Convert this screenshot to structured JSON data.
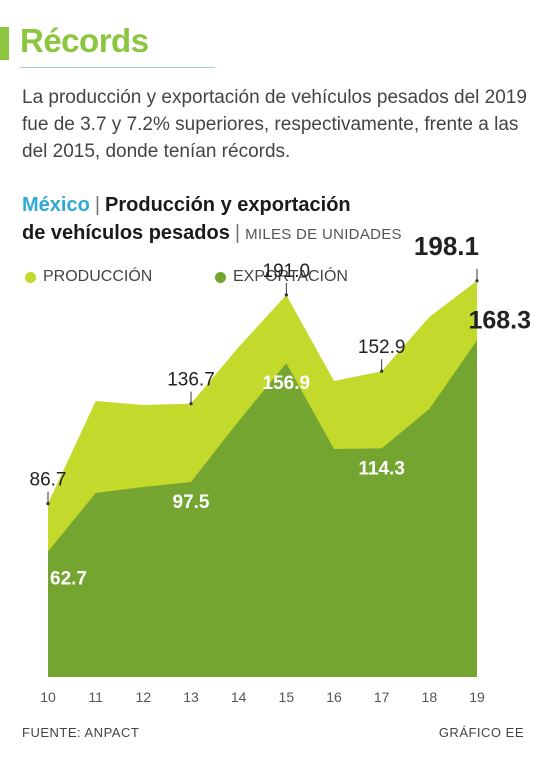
{
  "header": {
    "title": "Récords",
    "intro": "La producción y exportación de vehículos pesados del 2019 fue de 3.7 y 7.2% superiores, respectivamente, frente a las del 2015, donde tenían récords."
  },
  "chart_head": {
    "country": "México",
    "line1": "Producción y exportación",
    "line2": "de vehículos pesados",
    "units": "MILES DE UNIDADES"
  },
  "footer": {
    "source": "FUENTE: ANPACT",
    "credit": "GRÁFICO EE"
  },
  "chart_data": {
    "type": "area",
    "x": [
      "10",
      "11",
      "12",
      "13",
      "14",
      "15",
      "16",
      "17",
      "18",
      "19"
    ],
    "ylim": [
      0,
      200
    ],
    "grid": false,
    "legend": "top-left",
    "series": [
      {
        "name": "PRODUCCIÓN",
        "color": "#c3d92b",
        "values": [
          86.7,
          138,
          136,
          136.7,
          165,
          191.0,
          148,
          152.9,
          180,
          198.1
        ],
        "labels": [
          "86.7",
          null,
          null,
          "136.7",
          null,
          "191.0",
          null,
          "152.9",
          null,
          "198.1"
        ]
      },
      {
        "name": "EXPORTACIÓN",
        "color": "#74a530",
        "values": [
          62.7,
          92,
          95,
          97.5,
          128,
          156.9,
          114,
          114.3,
          134,
          168.3
        ],
        "labels": [
          "62.7",
          null,
          null,
          "97.5",
          null,
          "156.9",
          null,
          "114.3",
          null,
          "168.3"
        ]
      }
    ]
  }
}
